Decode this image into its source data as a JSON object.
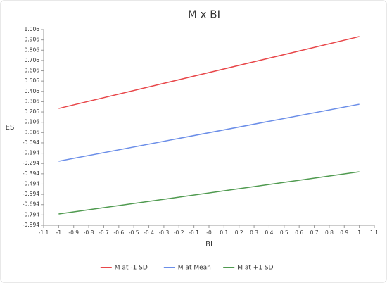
{
  "chart_data": {
    "type": "line",
    "title": "M x BI",
    "x_label": "BI",
    "y_label": "ES",
    "x": [
      -1,
      1
    ],
    "series": [
      {
        "name": "M at -1 SD",
        "color": "#e8474a",
        "values": [
          0.24,
          0.938
        ]
      },
      {
        "name": "M at Mean",
        "color": "#6b8ee8",
        "values": [
          -0.272,
          0.281
        ]
      },
      {
        "name": "M at +1 SD",
        "color": "#4f9a4f",
        "values": [
          -0.785,
          -0.375
        ]
      }
    ],
    "xlim": [
      -1.1,
      1.1
    ],
    "xticks": [
      -1.1,
      -1,
      -0.9,
      -0.8,
      -0.7,
      -0.6,
      -0.5,
      -0.4,
      -0.3,
      -0.2,
      -0.1,
      {
        "value": 0,
        "label": "-0"
      },
      0.1,
      0.2,
      0.3,
      0.4,
      0.5,
      0.6,
      0.7,
      0.8,
      0.9,
      1,
      1.1
    ],
    "ylim": [
      -0.894,
      1.006
    ],
    "yticks": [
      1.006,
      0.906,
      0.806,
      0.706,
      0.606,
      0.506,
      0.406,
      0.306,
      0.206,
      0.106,
      0.006,
      -0.094,
      -0.194,
      -0.294,
      -0.394,
      -0.494,
      -0.594,
      -0.694,
      -0.794,
      -0.894
    ],
    "grid": false,
    "legend": "bottom"
  }
}
